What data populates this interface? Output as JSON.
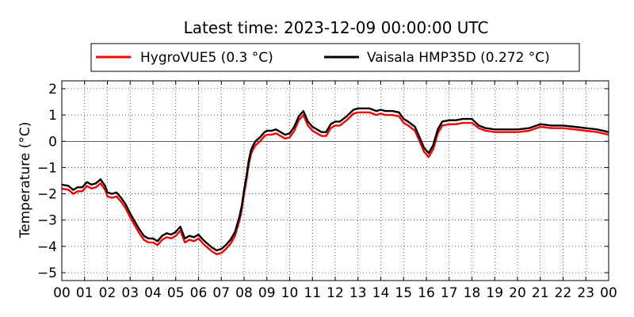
{
  "chart_data": {
    "type": "line",
    "title": "Latest time: 2023-12-09 00:00:00 UTC",
    "ylabel": "Temperature (°C)",
    "xlabel": "",
    "xlim": [
      0,
      24
    ],
    "ylim": [
      -5.3,
      2.3
    ],
    "x_tick_labels": [
      "00",
      "01",
      "02",
      "03",
      "04",
      "05",
      "06",
      "07",
      "08",
      "09",
      "10",
      "11",
      "12",
      "13",
      "14",
      "15",
      "16",
      "17",
      "18",
      "19",
      "20",
      "21",
      "22",
      "23",
      "00"
    ],
    "y_ticks": [
      -5,
      -4,
      -3,
      -2,
      -1,
      0,
      1,
      2
    ],
    "y_tick_labels": [
      "−5",
      "−4",
      "−3",
      "−2",
      "−1",
      "0",
      "1",
      "2"
    ],
    "grid": true,
    "legend_position": "top-center",
    "series": [
      {
        "name": "HygroVUE5 (0.3 °C)",
        "color": "#ff0000",
        "x": [
          0,
          0.3,
          0.5,
          0.7,
          0.9,
          1.1,
          1.3,
          1.5,
          1.7,
          1.9,
          2.0,
          2.2,
          2.4,
          2.6,
          2.8,
          3.0,
          3.2,
          3.4,
          3.6,
          3.8,
          4.0,
          4.2,
          4.4,
          4.6,
          4.8,
          5.0,
          5.2,
          5.4,
          5.6,
          5.8,
          6.0,
          6.2,
          6.4,
          6.6,
          6.8,
          7.0,
          7.2,
          7.4,
          7.6,
          7.8,
          7.9,
          8.0,
          8.1,
          8.2,
          8.3,
          8.4,
          8.5,
          8.7,
          8.9,
          9.0,
          9.2,
          9.4,
          9.6,
          9.8,
          10.0,
          10.2,
          10.4,
          10.6,
          10.8,
          11.0,
          11.2,
          11.4,
          11.6,
          11.8,
          12.0,
          12.2,
          12.5,
          12.8,
          13.0,
          13.2,
          13.5,
          13.8,
          14.0,
          14.2,
          14.5,
          14.8,
          15.0,
          15.2,
          15.5,
          15.7,
          15.9,
          16.1,
          16.3,
          16.5,
          16.7,
          17.0,
          17.3,
          17.6,
          18.0,
          18.3,
          18.6,
          19.0,
          19.5,
          20.0,
          20.5,
          21.0,
          21.5,
          22.0,
          22.5,
          23.0,
          23.5,
          24.0
        ],
        "y": [
          -1.8,
          -1.85,
          -2.0,
          -1.9,
          -1.9,
          -1.7,
          -1.8,
          -1.75,
          -1.6,
          -1.85,
          -2.1,
          -2.15,
          -2.1,
          -2.3,
          -2.55,
          -2.9,
          -3.2,
          -3.5,
          -3.75,
          -3.85,
          -3.85,
          -3.95,
          -3.75,
          -3.65,
          -3.7,
          -3.6,
          -3.4,
          -3.85,
          -3.75,
          -3.8,
          -3.7,
          -3.9,
          -4.05,
          -4.2,
          -4.3,
          -4.25,
          -4.1,
          -3.9,
          -3.6,
          -3.0,
          -2.6,
          -2.0,
          -1.5,
          -0.9,
          -0.5,
          -0.3,
          -0.15,
          0.0,
          0.2,
          0.25,
          0.25,
          0.3,
          0.2,
          0.1,
          0.15,
          0.4,
          0.8,
          1.0,
          0.6,
          0.4,
          0.3,
          0.2,
          0.2,
          0.5,
          0.6,
          0.6,
          0.8,
          1.05,
          1.1,
          1.1,
          1.1,
          1.0,
          1.05,
          1.0,
          1.0,
          0.95,
          0.7,
          0.6,
          0.4,
          0.0,
          -0.4,
          -0.6,
          -0.3,
          0.3,
          0.6,
          0.65,
          0.65,
          0.7,
          0.7,
          0.5,
          0.4,
          0.35,
          0.35,
          0.35,
          0.4,
          0.55,
          0.5,
          0.5,
          0.45,
          0.4,
          0.35,
          0.25
        ]
      },
      {
        "name": "Vaisala HMP35D (0.272 °C)",
        "color": "#000000",
        "x": [
          0,
          0.3,
          0.5,
          0.7,
          0.9,
          1.1,
          1.3,
          1.5,
          1.7,
          1.9,
          2.0,
          2.2,
          2.4,
          2.6,
          2.8,
          3.0,
          3.2,
          3.4,
          3.6,
          3.8,
          4.0,
          4.2,
          4.4,
          4.6,
          4.8,
          5.0,
          5.2,
          5.4,
          5.6,
          5.8,
          6.0,
          6.2,
          6.4,
          6.6,
          6.8,
          7.0,
          7.2,
          7.4,
          7.6,
          7.8,
          7.9,
          8.0,
          8.1,
          8.2,
          8.3,
          8.4,
          8.5,
          8.7,
          8.9,
          9.0,
          9.2,
          9.4,
          9.6,
          9.8,
          10.0,
          10.2,
          10.4,
          10.6,
          10.8,
          11.0,
          11.2,
          11.4,
          11.6,
          11.8,
          12.0,
          12.2,
          12.5,
          12.8,
          13.0,
          13.2,
          13.5,
          13.8,
          14.0,
          14.2,
          14.5,
          14.8,
          15.0,
          15.2,
          15.5,
          15.7,
          15.9,
          16.1,
          16.3,
          16.5,
          16.7,
          17.0,
          17.3,
          17.6,
          18.0,
          18.3,
          18.6,
          19.0,
          19.5,
          20.0,
          20.5,
          21.0,
          21.5,
          22.0,
          22.5,
          23.0,
          23.5,
          24.0
        ],
        "y": [
          -1.65,
          -1.7,
          -1.85,
          -1.75,
          -1.75,
          -1.55,
          -1.65,
          -1.6,
          -1.45,
          -1.7,
          -1.95,
          -2.0,
          -1.95,
          -2.15,
          -2.4,
          -2.75,
          -3.05,
          -3.35,
          -3.6,
          -3.7,
          -3.7,
          -3.8,
          -3.6,
          -3.5,
          -3.55,
          -3.45,
          -3.25,
          -3.7,
          -3.6,
          -3.65,
          -3.55,
          -3.75,
          -3.9,
          -4.05,
          -4.15,
          -4.1,
          -3.95,
          -3.75,
          -3.45,
          -2.85,
          -2.45,
          -1.85,
          -1.35,
          -0.75,
          -0.35,
          -0.15,
          0.0,
          0.15,
          0.35,
          0.4,
          0.4,
          0.45,
          0.35,
          0.25,
          0.3,
          0.55,
          0.95,
          1.15,
          0.75,
          0.55,
          0.45,
          0.35,
          0.35,
          0.65,
          0.75,
          0.75,
          0.95,
          1.2,
          1.25,
          1.25,
          1.25,
          1.15,
          1.2,
          1.15,
          1.15,
          1.1,
          0.85,
          0.75,
          0.55,
          0.15,
          -0.25,
          -0.45,
          -0.15,
          0.45,
          0.75,
          0.8,
          0.8,
          0.85,
          0.85,
          0.6,
          0.5,
          0.45,
          0.45,
          0.45,
          0.5,
          0.65,
          0.6,
          0.6,
          0.55,
          0.5,
          0.45,
          0.35
        ]
      }
    ]
  }
}
